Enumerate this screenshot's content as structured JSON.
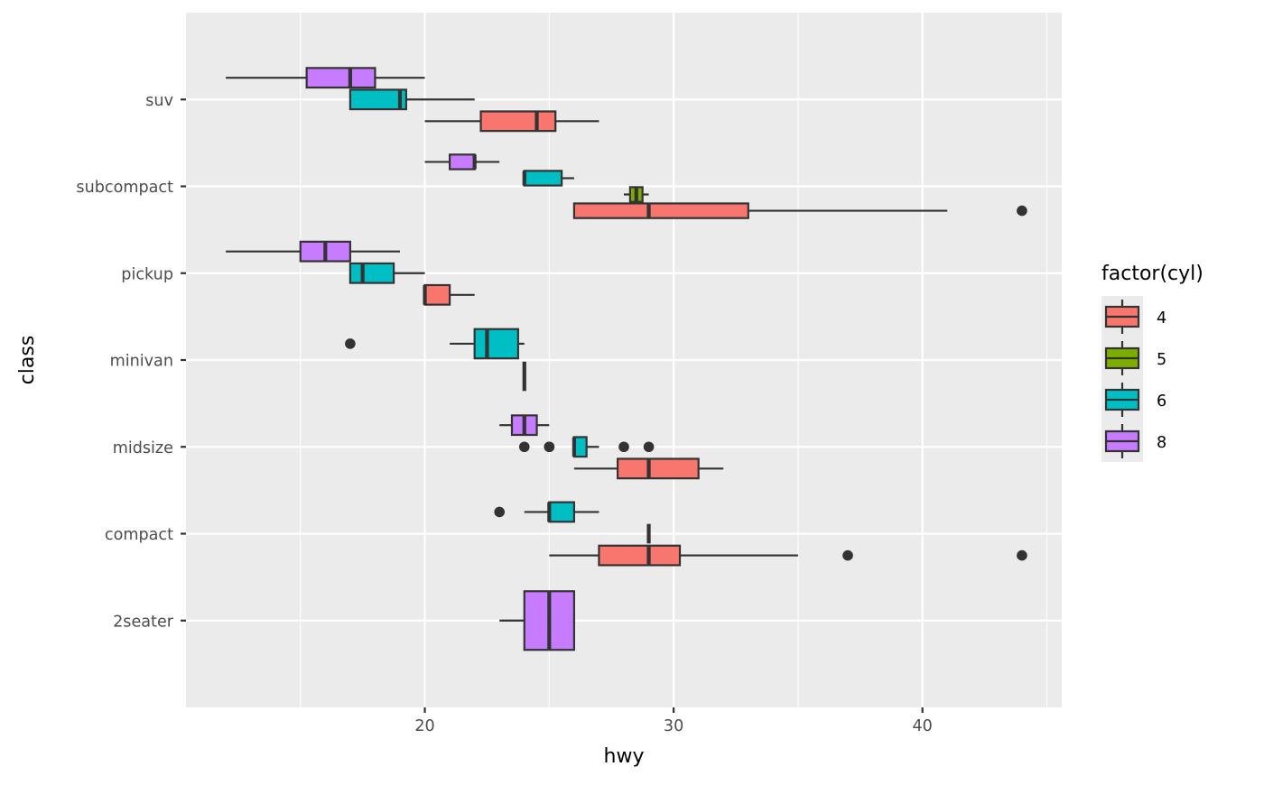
{
  "chart_data": {
    "type": "boxplot",
    "orientation": "horizontal",
    "xlabel": "hwy",
    "ylabel": "class",
    "xlim": [
      10.4,
      45.6
    ],
    "x_ticks": [
      20,
      30,
      40
    ],
    "x_tick_labels": [
      "20",
      "30",
      "40"
    ],
    "categories": [
      "2seater",
      "compact",
      "midsize",
      "minivan",
      "pickup",
      "subcompact",
      "suv"
    ],
    "grid": true,
    "legend": {
      "title": "factor(cyl)",
      "position": "right",
      "entries": [
        {
          "label": "4",
          "color": "#F8766D"
        },
        {
          "label": "5",
          "color": "#7CAE00"
        },
        {
          "label": "6",
          "color": "#00BFC4"
        },
        {
          "label": "8",
          "color": "#C77CFF"
        }
      ]
    },
    "boxes": [
      {
        "class": "2seater",
        "cyl": "8",
        "lo": 23,
        "q1": 24,
        "median": 25,
        "q3": 26,
        "hi": 26,
        "outliers": []
      },
      {
        "class": "compact",
        "cyl": "4",
        "lo": 25,
        "q1": 27,
        "median": 29,
        "q3": 30.25,
        "hi": 35,
        "outliers": [
          37,
          44
        ]
      },
      {
        "class": "compact",
        "cyl": "5",
        "lo": 29,
        "q1": 29,
        "median": 29,
        "q3": 29,
        "hi": 29,
        "outliers": []
      },
      {
        "class": "compact",
        "cyl": "6",
        "lo": 24,
        "q1": 25,
        "median": 25,
        "q3": 26,
        "hi": 27,
        "outliers": [
          23
        ]
      },
      {
        "class": "midsize",
        "cyl": "4",
        "lo": 26,
        "q1": 27.75,
        "median": 29,
        "q3": 31,
        "hi": 32,
        "outliers": []
      },
      {
        "class": "midsize",
        "cyl": "6",
        "lo": 26,
        "q1": 26,
        "median": 26,
        "q3": 26.5,
        "hi": 27,
        "outliers": [
          24,
          25,
          25,
          28,
          29
        ]
      },
      {
        "class": "midsize",
        "cyl": "8",
        "lo": 23,
        "q1": 23.5,
        "median": 24,
        "q3": 24.5,
        "hi": 25,
        "outliers": []
      },
      {
        "class": "minivan",
        "cyl": "4",
        "lo": 24,
        "q1": 24,
        "median": 24,
        "q3": 24,
        "hi": 24,
        "outliers": []
      },
      {
        "class": "minivan",
        "cyl": "6",
        "lo": 21,
        "q1": 22,
        "median": 22.5,
        "q3": 23.75,
        "hi": 24,
        "outliers": [
          17
        ]
      },
      {
        "class": "pickup",
        "cyl": "4",
        "lo": 20,
        "q1": 20,
        "median": 20,
        "q3": 21,
        "hi": 22,
        "outliers": []
      },
      {
        "class": "pickup",
        "cyl": "6",
        "lo": 17,
        "q1": 17,
        "median": 17.5,
        "q3": 18.75,
        "hi": 20,
        "outliers": []
      },
      {
        "class": "pickup",
        "cyl": "8",
        "lo": 12,
        "q1": 15,
        "median": 16,
        "q3": 17,
        "hi": 19,
        "outliers": []
      },
      {
        "class": "subcompact",
        "cyl": "4",
        "lo": 26,
        "q1": 26,
        "median": 29,
        "q3": 33,
        "hi": 41,
        "outliers": [
          44
        ]
      },
      {
        "class": "subcompact",
        "cyl": "5",
        "lo": 28,
        "q1": 28.25,
        "median": 28.5,
        "q3": 28.75,
        "hi": 29,
        "outliers": []
      },
      {
        "class": "subcompact",
        "cyl": "6",
        "lo": 24,
        "q1": 24,
        "median": 24,
        "q3": 25.5,
        "hi": 26,
        "outliers": []
      },
      {
        "class": "subcompact",
        "cyl": "8",
        "lo": 20,
        "q1": 21,
        "median": 22,
        "q3": 22,
        "hi": 23,
        "outliers": []
      },
      {
        "class": "suv",
        "cyl": "4",
        "lo": 20,
        "q1": 22.25,
        "median": 24.5,
        "q3": 25.25,
        "hi": 27,
        "outliers": []
      },
      {
        "class": "suv",
        "cyl": "6",
        "lo": 17,
        "q1": 17,
        "median": 19,
        "q3": 19.25,
        "hi": 22,
        "outliers": []
      },
      {
        "class": "suv",
        "cyl": "8",
        "lo": 12,
        "q1": 15.25,
        "median": 17,
        "q3": 18,
        "hi": 20,
        "outliers": []
      }
    ]
  }
}
